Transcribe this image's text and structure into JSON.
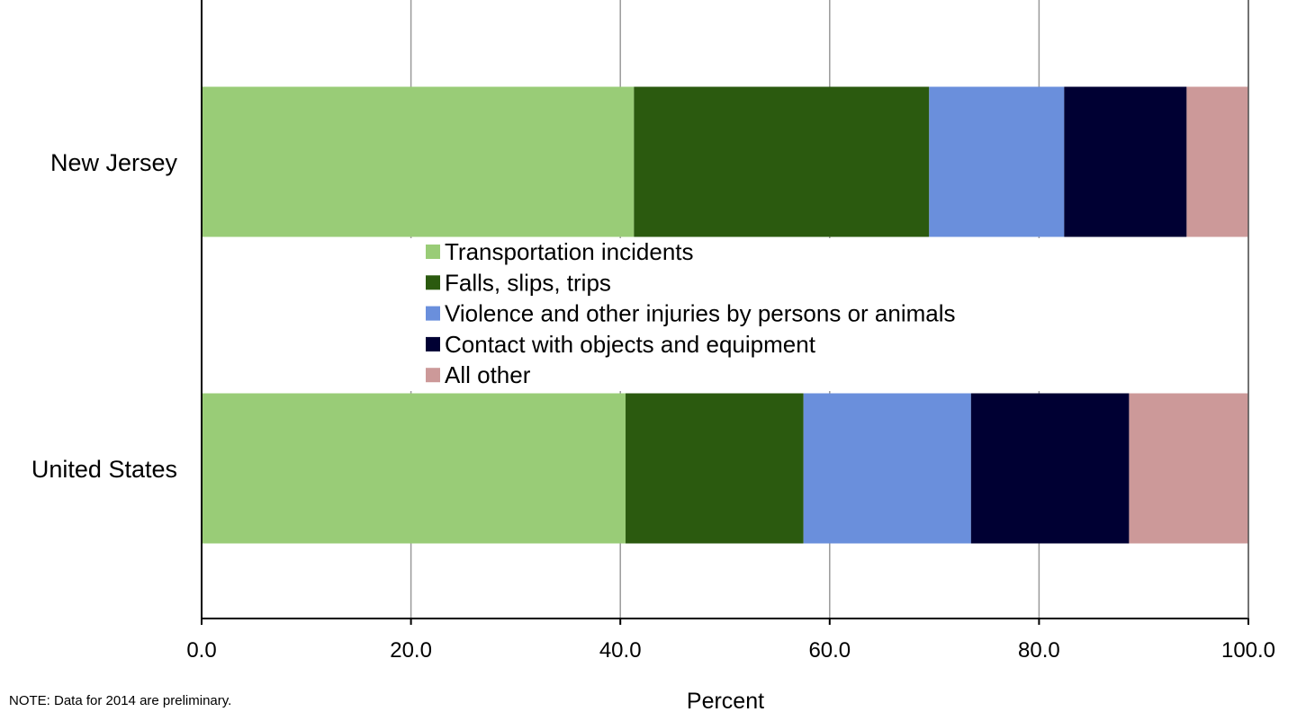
{
  "chart_data": {
    "type": "bar",
    "orientation": "horizontal",
    "stacked": true,
    "categories": [
      "New Jersey",
      "United States"
    ],
    "series": [
      {
        "name": "Transportation incidents",
        "color": "#99cc77",
        "values": [
          41.3,
          40.5
        ]
      },
      {
        "name": "Falls, slips, trips",
        "color": "#2b5a0f",
        "values": [
          28.2,
          17.0
        ]
      },
      {
        "name": "Violence and other injuries by persons or animals",
        "color": "#6a8fdc",
        "values": [
          12.9,
          16.0
        ]
      },
      {
        "name": "Contact with objects and equipment",
        "color": "#000033",
        "values": [
          11.7,
          15.1
        ]
      },
      {
        "name": "All other",
        "color": "#cc9999",
        "values": [
          5.9,
          11.4
        ]
      }
    ],
    "xlabel": "Percent",
    "xlim": [
      0,
      100
    ],
    "xticks": [
      "0.0",
      "20.0",
      "40.0",
      "60.0",
      "80.0",
      "100.0"
    ],
    "grid": true,
    "legend": "center"
  },
  "note": "NOTE: Data for 2014 are preliminary."
}
